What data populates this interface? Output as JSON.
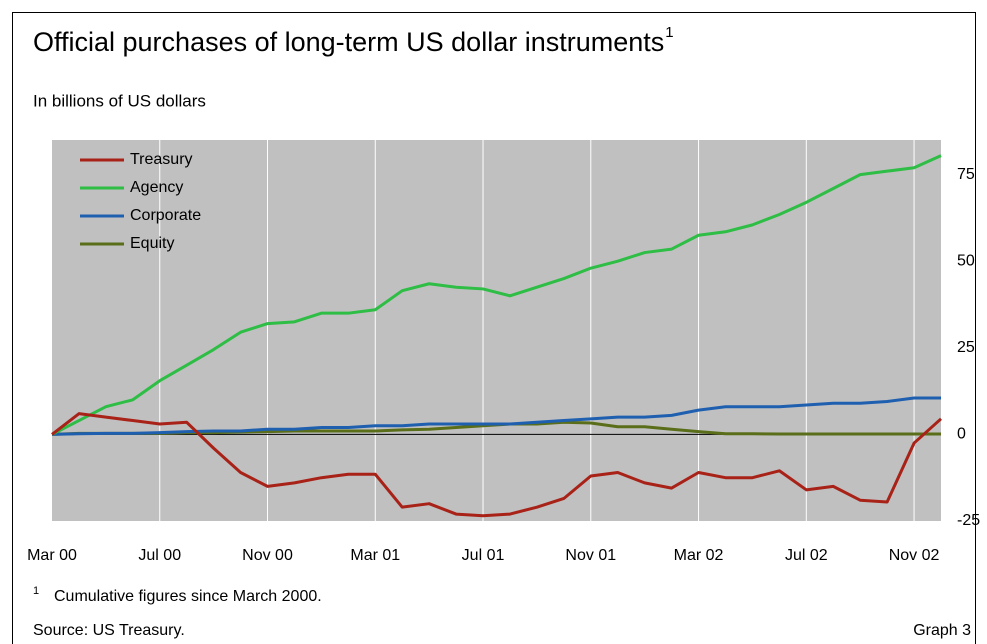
{
  "chart_data": {
    "type": "line",
    "title": "Official purchases of long-term US dollar instruments",
    "title_note": "1",
    "subtitle": "In billions of US dollars",
    "footnote_mark": "1",
    "footnote": "Cumulative figures since March 2000.",
    "source": "Source: US Treasury.",
    "graph_label": "Graph 3",
    "categories": [
      "Mar 00",
      null,
      null,
      null,
      "Jul 00",
      null,
      null,
      null,
      "Nov 00",
      null,
      null,
      null,
      "Mar 01",
      null,
      null,
      null,
      "Jul 01",
      null,
      null,
      null,
      "Nov 01",
      null,
      null,
      null,
      "Mar 02",
      null,
      null,
      null,
      "Jul 02",
      null,
      null,
      null,
      "Nov 02",
      null
    ],
    "series": [
      {
        "name": "Treasury",
        "color": "#a82218",
        "values": [
          0,
          6,
          5,
          4,
          3,
          3.5,
          -4,
          -11,
          -15,
          -14,
          -12.5,
          -11.5,
          -11.5,
          -21,
          -20,
          -23,
          -23.5,
          -23,
          -21,
          -18.5,
          -12,
          -11,
          -14,
          -15.5,
          -11,
          -12.5,
          -12.5,
          -10.5,
          -16,
          -15,
          -19,
          -19.5,
          -2.5,
          4.5
        ]
      },
      {
        "name": "Agency",
        "color": "#2ebd45",
        "values": [
          0,
          4,
          8,
          10,
          15.5,
          20,
          24.5,
          29.5,
          32,
          32.5,
          35,
          35,
          36,
          41.5,
          43.5,
          42.5,
          42,
          40,
          42.5,
          45,
          48,
          50,
          52.5,
          53.5,
          57.5,
          58.5,
          60.5,
          63.5,
          67,
          71,
          75,
          76,
          77,
          80.5
        ]
      },
      {
        "name": "Corporate",
        "color": "#1f5fb0",
        "values": [
          0,
          0.2,
          0.3,
          0.3,
          0.5,
          0.8,
          1,
          1,
          1.5,
          1.5,
          2,
          2,
          2.5,
          2.5,
          3,
          3,
          3,
          3,
          3.5,
          4,
          4.5,
          5,
          5,
          5.5,
          7,
          8,
          8,
          8,
          8.5,
          9,
          9,
          9.5,
          10.5,
          10.5
        ]
      },
      {
        "name": "Equity",
        "color": "#5a6e1a",
        "values": [
          0,
          0.3,
          0.3,
          0.3,
          0.3,
          0.5,
          0.5,
          0.7,
          0.8,
          1,
          1,
          1,
          1,
          1.3,
          1.5,
          2,
          2.5,
          3,
          3,
          3.5,
          3.3,
          2.2,
          2.2,
          1.5,
          0.8,
          0.2,
          0.2,
          0.1,
          0.1,
          0.1,
          0.1,
          0.1,
          0.1,
          0.1
        ]
      }
    ],
    "ylim": [
      -25,
      85
    ],
    "yticks": [
      -25,
      0,
      25,
      50,
      75
    ],
    "grid": true,
    "legend": "upper left"
  }
}
